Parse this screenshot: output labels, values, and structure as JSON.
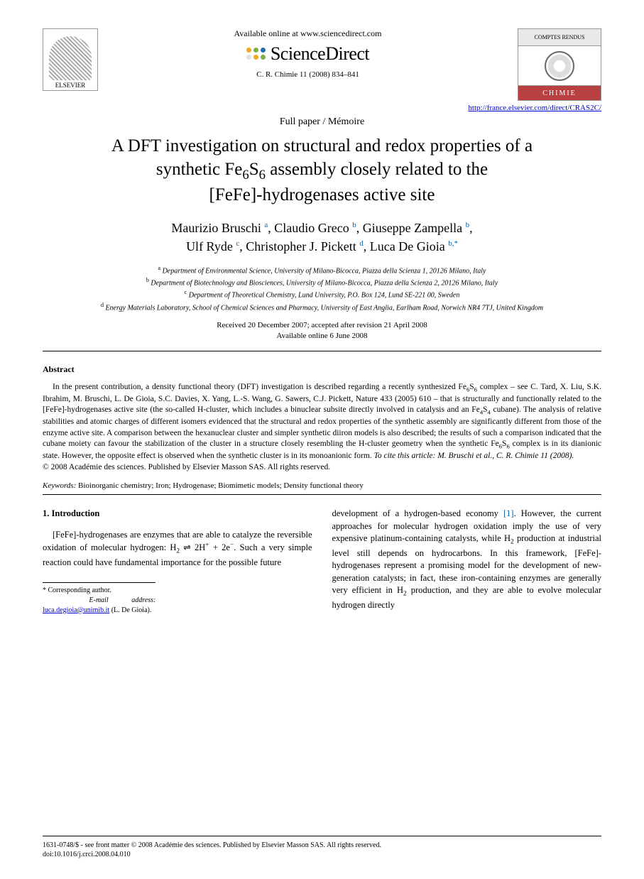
{
  "header": {
    "available_online": "Available online at www.sciencedirect.com",
    "sd_brand": "ScienceDirect",
    "elsevier_label": "ELSEVIER",
    "journal_ref": "C. R. Chimie 11 (2008) 834–841",
    "journal_badge_top": "COMPTES RENDUS",
    "journal_badge_bot": "CHIMIE",
    "journal_url": "http://france.elsevier.com/direct/CRAS2C/",
    "paper_type": "Full paper / Mémoire",
    "sd_dot_colors": [
      "#f5a623",
      "#7bb342",
      "#1b6faa",
      "#e1e1e1",
      "#f5a623",
      "#7bb342"
    ]
  },
  "title": {
    "line1": "A DFT investigation on structural and redox properties of a",
    "line2_pre": "synthetic Fe",
    "line2_sub1": "6",
    "line2_mid": "S",
    "line2_sub2": "6",
    "line2_post": " assembly closely related to the",
    "line3": "[FeFe]-hydrogenases active site"
  },
  "authors": [
    {
      "name": "Maurizio Bruschi",
      "aff": "a"
    },
    {
      "name": "Claudio Greco",
      "aff": "b"
    },
    {
      "name": "Giuseppe Zampella",
      "aff": "b"
    },
    {
      "name": "Ulf Ryde",
      "aff": "c"
    },
    {
      "name": "Christopher J. Pickett",
      "aff": "d"
    },
    {
      "name": "Luca De Gioia",
      "aff": "b,*"
    }
  ],
  "affiliations": {
    "a": "Department of Environmental Science, University of Milano-Bicocca, Piazza della Scienza 1, 20126 Milano, Italy",
    "b": "Department of Biotechnology and Biosciences, University of Milano-Bicocca, Piazza della Scienza 2, 20126 Milano, Italy",
    "c": "Department of Theoretical Chemistry, Lund University, P.O. Box 124, Lund SE-221 00, Sweden",
    "d": "Energy Materials Laboratory, School of Chemical Sciences and Pharmacy, University of East Anglia, Earlham Road, Norwich NR4 7TJ, United Kingdom"
  },
  "dates": {
    "received": "Received 20 December 2007; accepted after revision 21 April 2008",
    "online": "Available online 6 June 2008"
  },
  "abstract": {
    "heading": "Abstract",
    "body_1": "In the present contribution, a density functional theory (DFT) investigation is described regarding a recently synthesized Fe",
    "body_2": "S",
    "body_3": " complex – see C. Tard, X. Liu, S.K. Ibrahim, M. Bruschi, L. De Gioia, S.C. Davies, X. Yang, L.-S. Wang, G. Sawers, C.J. Pickett, Nature 433 (2005) 610 – that is structurally and functionally related to the [FeFe]-hydrogenases active site (the so-called H-cluster, which includes a binuclear subsite directly involved in catalysis and an Fe",
    "body_4": "S",
    "body_5": " cubane). The analysis of relative stabilities and atomic charges of different isomers evidenced that the structural and redox properties of the synthetic assembly are significantly different from those of the enzyme active site. A comparison between the hexanuclear cluster and simpler synthetic diiron models is also described; the results of such a comparison indicated that the cubane moiety can favour the stabilization of the cluster in a structure closely resembling the H-cluster geometry when the synthetic Fe",
    "body_6": "S",
    "body_7": " complex is in its dianionic state. However, the opposite effect is observed when the synthetic cluster is in its monoanionic form. ",
    "cite": "To cite this article: M. Bruschi et al., C. R. Chimie 11 (2008).",
    "copyright": "© 2008 Académie des sciences. Published by Elsevier Masson SAS. All rights reserved."
  },
  "keywords": {
    "label": "Keywords:",
    "list": "Bioinorganic chemistry; Iron; Hydrogenase; Biomimetic models; Density functional theory"
  },
  "intro": {
    "heading": "1. Introduction",
    "col1_p1_a": "[FeFe]-hydrogenases are enzymes that are able to catalyze the reversible oxidation of molecular hydrogen: H",
    "col1_p1_b": " ⇌ 2H",
    "col1_p1_c": " + 2e",
    "col1_p1_d": ". Such a very simple reaction could have fundamental importance for the possible future",
    "col2_p1_a": "development of a hydrogen-based economy ",
    "col2_ref1": "[1]",
    "col2_p1_b": ". However, the current approaches for molecular hydrogen oxidation imply the use of very expensive platinum-containing catalysts, while H",
    "col2_p1_c": " production at industrial level still depends on hydrocarbons. In this framework, [FeFe]-hydrogenases represent a promising model for the development of new-generation catalysts; in fact, these iron-containing enzymes are generally very efficient in H",
    "col2_p1_d": " production, and they are able to evolve molecular hydrogen directly"
  },
  "corresponding": {
    "label": "* Corresponding author.",
    "email_label": "E-mail address:",
    "email": "luca.degioia@unimib.it",
    "name": "(L. De Gioia)."
  },
  "footer": {
    "line1": "1631-0748/$ - see front matter © 2008 Académie des sciences. Published by Elsevier Masson SAS. All rights reserved.",
    "line2": "doi:10.1016/j.crci.2008.04.010"
  },
  "colors": {
    "link_blue": "#0000d0",
    "sup_blue": "#0560a6",
    "badge_red": "#b84040"
  }
}
